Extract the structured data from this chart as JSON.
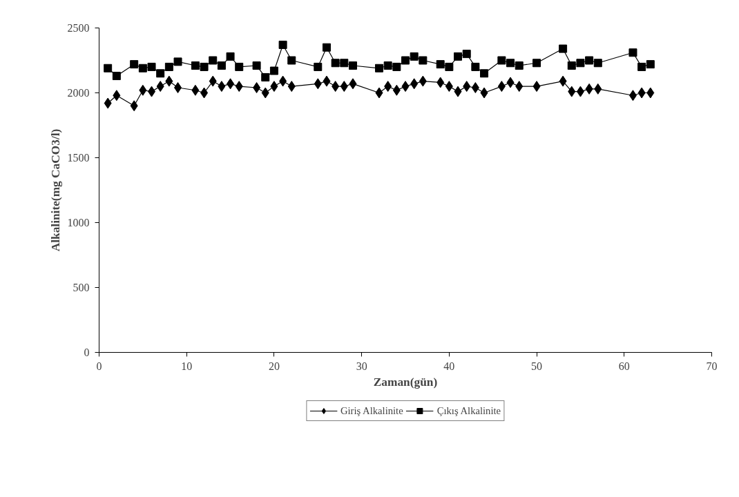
{
  "chart_data": {
    "type": "line",
    "xlabel": "Zaman(gün)",
    "ylabel": "Alkalinite(mg CaCO3/l)",
    "x": [
      1,
      2,
      4,
      5,
      6,
      7,
      8,
      9,
      11,
      12,
      13,
      14,
      15,
      16,
      18,
      19,
      20,
      21,
      22,
      25,
      26,
      27,
      28,
      29,
      32,
      33,
      34,
      35,
      36,
      37,
      39,
      40,
      41,
      42,
      43,
      44,
      46,
      47,
      48,
      50,
      53,
      54,
      55,
      56,
      57,
      61,
      62,
      63
    ],
    "series": [
      {
        "name": "Giriş Alkalinite",
        "color": "#000000",
        "marker": "diamond",
        "values": [
          1920,
          1980,
          1900,
          2020,
          2010,
          2050,
          2090,
          2040,
          2020,
          2000,
          2090,
          2050,
          2070,
          2050,
          2040,
          2000,
          2050,
          2090,
          2050,
          2070,
          2090,
          2050,
          2050,
          2070,
          2000,
          2050,
          2020,
          2050,
          2070,
          2090,
          2080,
          2050,
          2010,
          2050,
          2040,
          2000,
          2050,
          2080,
          2050,
          2050,
          2090,
          2010,
          2010,
          2030,
          2030,
          1980,
          2000,
          2000
        ]
      },
      {
        "name": "Çıkış Alkalinite",
        "color": "#000000",
        "marker": "square",
        "values": [
          2190,
          2130,
          2220,
          2190,
          2200,
          2150,
          2200,
          2240,
          2210,
          2200,
          2250,
          2210,
          2280,
          2200,
          2210,
          2120,
          2170,
          2370,
          2250,
          2200,
          2350,
          2230,
          2230,
          2210,
          2190,
          2210,
          2200,
          2250,
          2280,
          2250,
          2220,
          2200,
          2280,
          2300,
          2200,
          2150,
          2250,
          2230,
          2210,
          2230,
          2340,
          2210,
          2230,
          2250,
          2230,
          2310,
          2200,
          2220
        ]
      }
    ],
    "xlim": [
      0,
      70
    ],
    "xticks": [
      0,
      10,
      20,
      30,
      40,
      50,
      60,
      70
    ],
    "ylim": [
      0,
      2500
    ],
    "yticks": [
      0,
      500,
      1000,
      1500,
      2000,
      2500
    ],
    "grid": false,
    "legend": "bottom",
    "line_style": "solid"
  }
}
